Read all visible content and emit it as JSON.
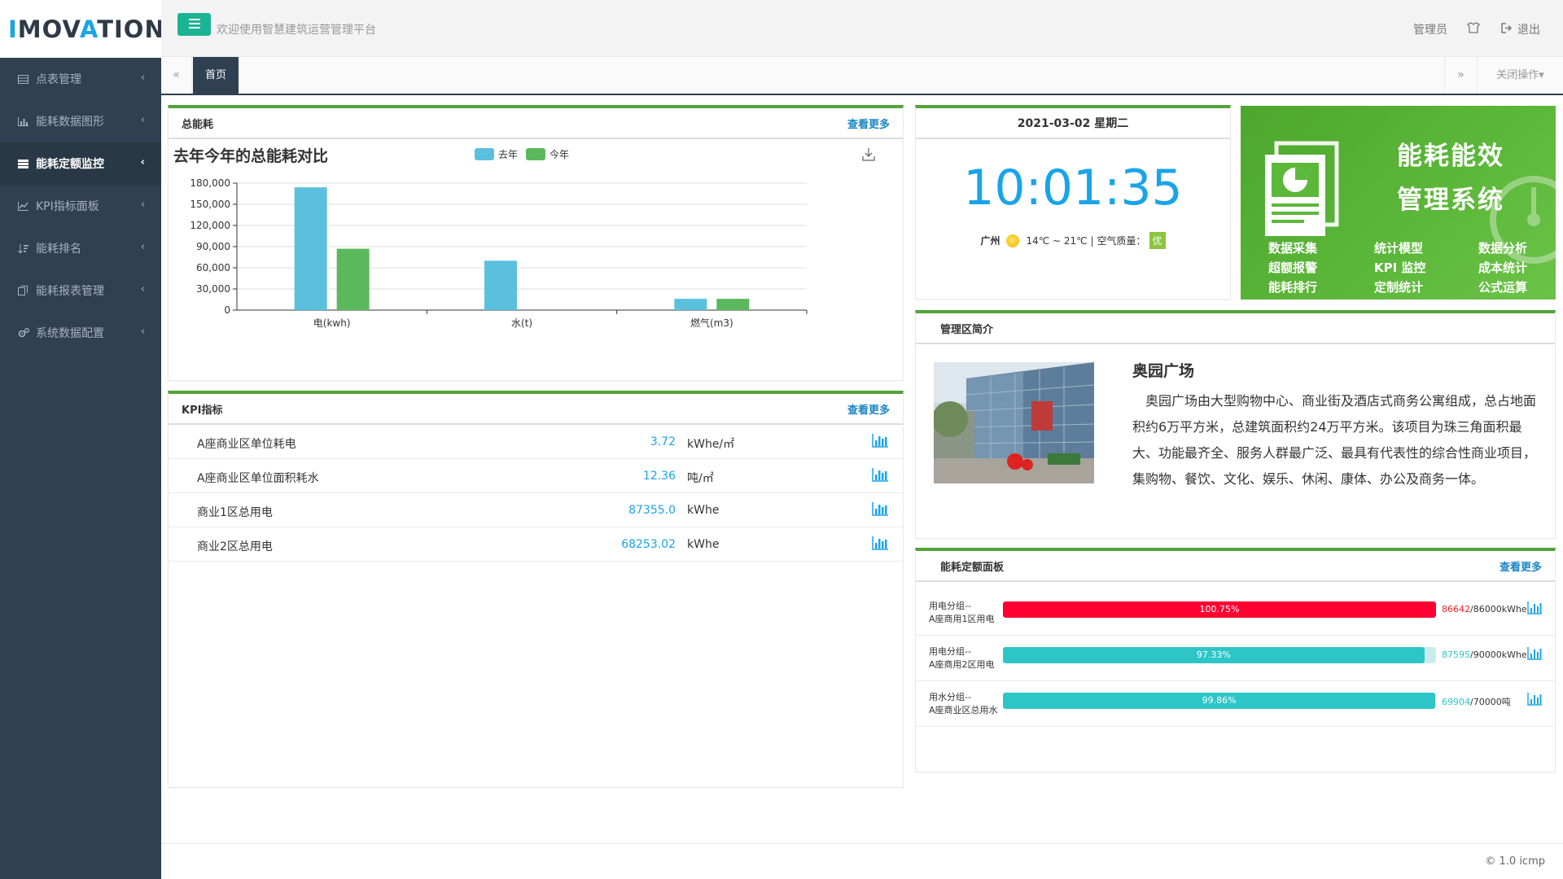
{
  "app": {
    "logo_prefix": "I",
    "logo_mid": "MOV",
    "logo_a": "A",
    "logo_suffix": "TION",
    "welcome": "欢迎使用智慧建筑运营管理平台",
    "admin_label": "管理员",
    "logout_label": "退出"
  },
  "sidebar": {
    "items": [
      {
        "label": "点表管理",
        "icon": "table-icon"
      },
      {
        "label": "能耗数据图形",
        "icon": "bar-chart-icon"
      },
      {
        "label": "能耗定额监控",
        "icon": "list-icon"
      },
      {
        "label": "KPI指标面板",
        "icon": "line-chart-icon"
      },
      {
        "label": "能耗排名",
        "icon": "sort-icon"
      },
      {
        "label": "能耗报表管理",
        "icon": "report-icon"
      },
      {
        "label": "系统数据配置",
        "icon": "gears-icon"
      }
    ],
    "active_index": 2
  },
  "tabs": {
    "home": "首页",
    "close_ops": "关闭操作▾"
  },
  "total_panel": {
    "title": "总能耗",
    "more": "查看更多"
  },
  "chart_data": {
    "type": "bar",
    "title": "去年今年的总能耗对比",
    "categories": [
      "电(kwh)",
      "水(t)",
      "燃气(m3)"
    ],
    "series": [
      {
        "name": "去年",
        "values": [
          174000,
          70000,
          16000
        ],
        "color": "#5bc0de"
      },
      {
        "name": "今年",
        "values": [
          87000,
          0,
          16000
        ],
        "color": "#5cb85c"
      }
    ],
    "ylim": [
      0,
      180000
    ],
    "yticks": [
      "180,000",
      "150,000",
      "120,000",
      "90,000",
      "60,000",
      "30,000",
      "0"
    ],
    "legend": "top"
  },
  "kpi_panel": {
    "title": "KPI指标",
    "more": "查看更多",
    "rows": [
      {
        "name": "A座商业区单位耗电",
        "value": "3.72",
        "unit": "kWhe/㎡"
      },
      {
        "name": "A座商业区单位面积耗水",
        "value": "12.36",
        "unit": "吨/㎡"
      },
      {
        "name": "商业1区总用电",
        "value": "87355.0",
        "unit": "kWhe"
      },
      {
        "name": "商业2区总用电",
        "value": "68253.02",
        "unit": "kWhe"
      }
    ]
  },
  "clock": {
    "date": "2021-03-02 星期二",
    "time": "10:01:35",
    "city": "广州",
    "temp": "14℃ ~ 21℃",
    "air_label": "| 空气质量：",
    "air_value": "优"
  },
  "promo": {
    "title1": "能耗能效",
    "title2": "管理系统",
    "features": [
      "数据采集",
      "统计模型",
      "数据分析",
      "超额报警",
      "KPI 监控",
      "成本统计",
      "能耗排行",
      "定制统计",
      "公式运算"
    ]
  },
  "intro": {
    "title": "管理区简介",
    "name": "奥园广场",
    "text": "奥园广场由大型购物中心、商业街及酒店式商务公寓组成，总占地面积约6万平方米，总建筑面积约24万平方米。该项目为珠三角面积最大、功能最齐全、服务人群最广泛、最具有代表性的综合性商业项目，集购物、餐饮、文化、娱乐、休闲、康体、办公及商务一体。"
  },
  "quota_panel": {
    "title": "能耗定额面板",
    "more": "查看更多",
    "rows": [
      {
        "label1": "用电分组--",
        "label2": "A座商用1区用电",
        "percent": 100.75,
        "percent_text": "100.75%",
        "used": "86642",
        "quota": "/86000kWhe",
        "color": "#ff0033",
        "used_color": "#e8232b"
      },
      {
        "label1": "用电分组--",
        "label2": "A座商用2区用电",
        "percent": 97.33,
        "percent_text": "97.33%",
        "used": "87595",
        "quota": "/90000kWhe",
        "color": "#2ec5c8",
        "used_color": "#2ec5c8"
      },
      {
        "label1": "用水分组--",
        "label2": "A座商业区总用水",
        "percent": 99.86,
        "percent_text": "99.86%",
        "used": "69904",
        "quota": "/70000吨",
        "color": "#2ec5c8",
        "used_color": "#2ec5c8"
      }
    ]
  },
  "footer": {
    "text": "© 1.0 icmp"
  }
}
